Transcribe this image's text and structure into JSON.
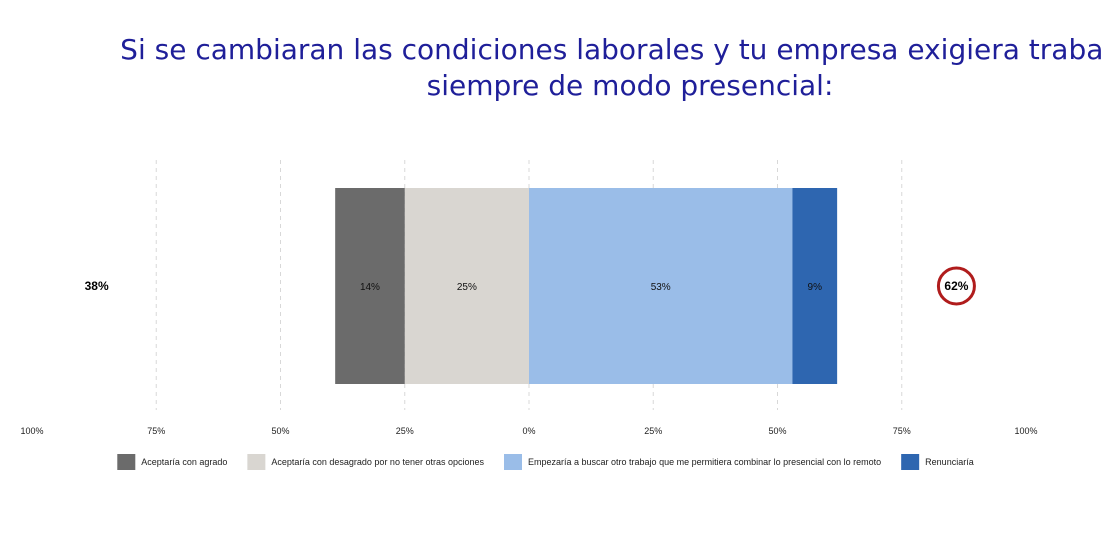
{
  "title": {
    "line1": "Si se cambiaran las condiciones laborales y tu empresa exigiera trabajar",
    "line2": "siempre de modo presencial:"
  },
  "chart_data": {
    "type": "bar",
    "orientation": "horizontal-diverging-stacked",
    "x_ticks": [
      "100%",
      "75%",
      "50%",
      "25%",
      "0%",
      "25%",
      "50%",
      "75%",
      "100%"
    ],
    "xlim": [
      -100,
      100
    ],
    "grid": true,
    "legend_position": "bottom",
    "series": [
      {
        "name": "Aceptaría con agrado",
        "value": 14,
        "label": "14%",
        "side": "negative",
        "color": "#6b6b6b"
      },
      {
        "name": "Aceptaría con desagrado por no tener otras opciones",
        "value": 25,
        "label": "25%",
        "side": "negative",
        "color": "#d9d6d1"
      },
      {
        "name": "Empezaría a buscar otro trabajo que me permitiera combinar lo presencial con lo remoto",
        "value": 53,
        "label": "53%",
        "side": "positive",
        "color": "#9abde8"
      },
      {
        "name": "Renunciaría",
        "value": 9,
        "label": "9%",
        "side": "positive",
        "color": "#2e66b0"
      }
    ],
    "totals": {
      "negative": "38%",
      "positive": "62%"
    },
    "highlight_color": "#b01c1c"
  }
}
